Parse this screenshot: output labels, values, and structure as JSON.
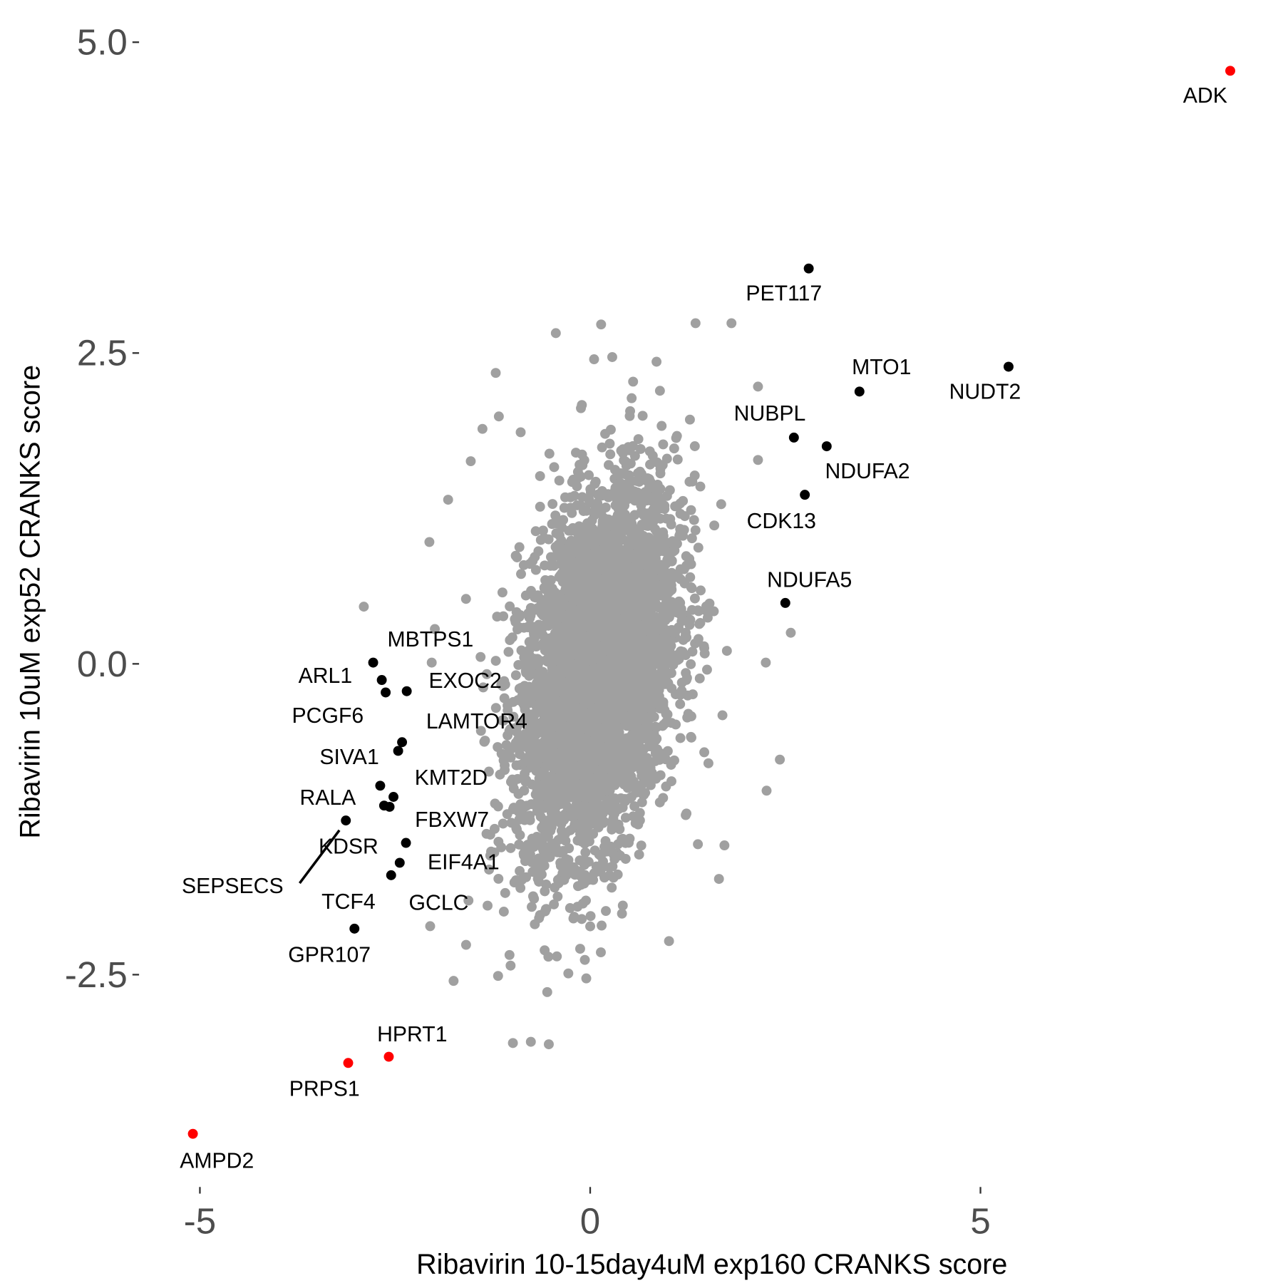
{
  "chart_data": {
    "type": "scatter",
    "xlabel": "Ribavirin 10-15day4uM exp160 CRANKS score",
    "ylabel": "Ribavirin 10uM exp52 CRANKS score",
    "xlim": [
      -5.1,
      8.3
    ],
    "ylim": [
      -4.2,
      5.1
    ],
    "x_ticks": [
      "-5",
      "0",
      "5"
    ],
    "x_tick_values": [
      -5,
      0,
      5
    ],
    "y_ticks": [
      "-2.5",
      "0.0",
      "2.5",
      "5.0"
    ],
    "y_tick_values": [
      -2.5,
      0,
      2.5,
      5
    ],
    "grid": false,
    "colors": {
      "background_genes": "#a0a0a0",
      "highlighted": "#000000",
      "key_genes": "#ff0000"
    },
    "labeled_points": [
      {
        "gene": "ADK",
        "x": 8.2,
        "y": 4.77,
        "color": "#ff0000"
      },
      {
        "gene": "PET117",
        "x": 2.8,
        "y": 3.18,
        "color": "#000000"
      },
      {
        "gene": "MTO1",
        "x": 3.45,
        "y": 2.19,
        "color": "#000000"
      },
      {
        "gene": "NUDT2",
        "x": 5.36,
        "y": 2.39,
        "color": "#000000"
      },
      {
        "gene": "NUBPL",
        "x": 2.61,
        "y": 1.82,
        "color": "#000000"
      },
      {
        "gene": "NDUFA2",
        "x": 3.03,
        "y": 1.75,
        "color": "#000000"
      },
      {
        "gene": "CDK13",
        "x": 2.75,
        "y": 1.36,
        "color": "#000000"
      },
      {
        "gene": "NDUFA5",
        "x": 2.5,
        "y": 0.49,
        "color": "#000000"
      },
      {
        "gene": "MBTPS1",
        "x": -2.78,
        "y": 0.01,
        "color": "#000000"
      },
      {
        "gene": "ARL1",
        "x": -2.67,
        "y": -0.13,
        "color": "#000000"
      },
      {
        "gene": "PCGF6",
        "x": -2.62,
        "y": -0.23,
        "color": "#000000"
      },
      {
        "gene": "EXOC2",
        "x": -2.35,
        "y": -0.22,
        "color": "#000000"
      },
      {
        "gene": "LAMTOR4",
        "x": -2.41,
        "y": -0.63,
        "color": "#000000"
      },
      {
        "gene": "SIVA1",
        "x": -2.46,
        "y": -0.7,
        "color": "#000000"
      },
      {
        "gene": "RALA",
        "x": -2.69,
        "y": -0.98,
        "color": "#000000"
      },
      {
        "gene": "KMT2D",
        "x": -2.52,
        "y": -1.07,
        "color": "#000000"
      },
      {
        "gene": "FBXW7",
        "x": -2.57,
        "y": -1.15,
        "color": "#000000"
      },
      {
        "gene": "KDSR",
        "x": -2.64,
        "y": -1.14,
        "color": "#000000"
      },
      {
        "gene": "SEPSECS",
        "x": -3.13,
        "y": -1.26,
        "color": "#000000"
      },
      {
        "gene": "EIF4A1",
        "x": -2.36,
        "y": -1.44,
        "color": "#000000"
      },
      {
        "gene": "GCLC",
        "x": -2.44,
        "y": -1.6,
        "color": "#000000"
      },
      {
        "gene": "TCF4",
        "x": -2.55,
        "y": -1.7,
        "color": "#000000"
      },
      {
        "gene": "GPR107",
        "x": -3.02,
        "y": -2.13,
        "color": "#000000"
      },
      {
        "gene": "HPRT1",
        "x": -2.58,
        "y": -3.16,
        "color": "#ff0000"
      },
      {
        "gene": "PRPS1",
        "x": -3.1,
        "y": -3.21,
        "color": "#ff0000"
      },
      {
        "gene": "AMPD2",
        "x": -5.09,
        "y": -3.78,
        "color": "#ff0000"
      }
    ],
    "unlabeled_outer_points": [
      [
        -2.9,
        0.46
      ],
      [
        0.14,
        2.73
      ],
      [
        -0.44,
        2.66
      ],
      [
        1.35,
        2.74
      ],
      [
        1.81,
        2.74
      ],
      [
        -1.21,
        2.34
      ],
      [
        0.05,
        2.45
      ],
      [
        2.15,
        2.23
      ],
      [
        2.15,
        1.64
      ],
      [
        2.57,
        0.25
      ],
      [
        2.25,
        0.01
      ],
      [
        2.43,
        -0.77
      ],
      [
        2.26,
        -1.02
      ],
      [
        1.72,
        -1.46
      ],
      [
        1.65,
        -1.73
      ],
      [
        1.01,
        -2.23
      ],
      [
        -0.55,
        -2.64
      ],
      [
        -0.99,
        -3.05
      ],
      [
        -0.53,
        -3.06
      ],
      [
        -0.76,
        -3.04
      ],
      [
        -1.75,
        -2.55
      ],
      [
        -2.05,
        -2.11
      ],
      [
        -2.06,
        0.98
      ],
      [
        -1.82,
        1.32
      ],
      [
        -1.53,
        1.63
      ],
      [
        -1.38,
        1.89
      ],
      [
        -1.17,
        1.99
      ],
      [
        0.55,
        2.27
      ],
      [
        0.85,
        2.43
      ],
      [
        -2.03,
        0.01
      ],
      [
        -1.99,
        0.28
      ],
      [
        -1.59,
        -2.26
      ],
      [
        -1.18,
        -2.51
      ],
      [
        -0.05,
        -2.53
      ],
      [
        -0.28,
        -2.49
      ]
    ]
  }
}
